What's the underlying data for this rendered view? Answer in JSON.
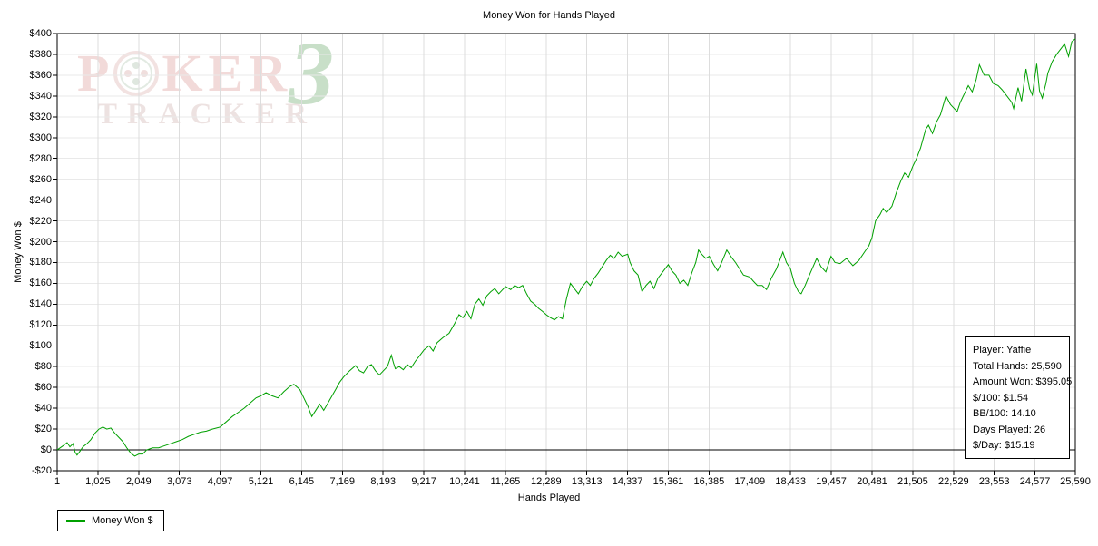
{
  "title": "Money Won for Hands Played",
  "watermark": {
    "p": "P",
    "ker": "KER",
    "three": "3",
    "tracker": "TRACKER"
  },
  "legend": {
    "label": "Money Won $"
  },
  "info_box": {
    "lines": [
      "Player: Yaffie",
      "Total Hands: 25,590",
      "Amount Won: $395.05",
      "$/100: $1.54",
      "BB/100: 14.10",
      "Days Played: 26",
      "$/Day: $15.19"
    ]
  },
  "chart_data": {
    "type": "line",
    "title": "Money Won for Hands Played",
    "xlabel": "Hands Played",
    "ylabel": "Money Won $",
    "xlim": [
      1,
      25590
    ],
    "ylim": [
      -20,
      400
    ],
    "grid": true,
    "zero_line": true,
    "legend_position": "bottom-left",
    "colors": {
      "grid_h": "#e9e9e9",
      "grid_v": "#dddddd",
      "axis": "#000000",
      "zero_line": "#000000"
    },
    "x_ticks": {
      "values": [
        1,
        1025,
        2049,
        3073,
        4097,
        5121,
        6145,
        7169,
        8193,
        9217,
        10241,
        11265,
        12289,
        13313,
        14337,
        15361,
        16385,
        17409,
        18433,
        19457,
        20481,
        21505,
        22529,
        23553,
        24577,
        25590
      ],
      "labels": [
        "1",
        "1,025",
        "2,049",
        "3,073",
        "4,097",
        "5,121",
        "6,145",
        "7,169",
        "8,193",
        "9,217",
        "10,241",
        "11,265",
        "12,289",
        "13,313",
        "14,337",
        "15,361",
        "16,385",
        "17,409",
        "18,433",
        "19,457",
        "20,481",
        "21,505",
        "22,529",
        "23,553",
        "24,577",
        "25,590"
      ]
    },
    "y_ticks": {
      "values": [
        400,
        380,
        360,
        340,
        320,
        300,
        280,
        260,
        240,
        220,
        200,
        180,
        160,
        140,
        120,
        100,
        80,
        60,
        40,
        20,
        0,
        -20
      ],
      "labels": [
        "$400",
        "$380",
        "$360",
        "$340",
        "$320",
        "$300",
        "$280",
        "$260",
        "$240",
        "$220",
        "$200",
        "$180",
        "$160",
        "$140",
        "$120",
        "$100",
        "$80",
        "$60",
        "$40",
        "$20",
        "$0",
        "-$20"
      ]
    },
    "series": [
      {
        "name": "Money Won $",
        "color": "#00a000",
        "points": [
          [
            1,
            0
          ],
          [
            150,
            4
          ],
          [
            250,
            7
          ],
          [
            320,
            3
          ],
          [
            400,
            6
          ],
          [
            450,
            -2
          ],
          [
            500,
            -5
          ],
          [
            560,
            -2
          ],
          [
            650,
            3
          ],
          [
            750,
            6
          ],
          [
            850,
            10
          ],
          [
            950,
            16
          ],
          [
            1050,
            20
          ],
          [
            1150,
            22
          ],
          [
            1250,
            20
          ],
          [
            1350,
            21
          ],
          [
            1450,
            16
          ],
          [
            1550,
            12
          ],
          [
            1650,
            8
          ],
          [
            1750,
            2
          ],
          [
            1850,
            -3
          ],
          [
            1950,
            -6
          ],
          [
            2050,
            -4
          ],
          [
            2150,
            -4
          ],
          [
            2250,
            0
          ],
          [
            2400,
            2
          ],
          [
            2550,
            2
          ],
          [
            2700,
            4
          ],
          [
            2850,
            6
          ],
          [
            3000,
            8
          ],
          [
            3150,
            10
          ],
          [
            3300,
            13
          ],
          [
            3450,
            15
          ],
          [
            3600,
            17
          ],
          [
            3750,
            18
          ],
          [
            3900,
            20
          ],
          [
            4100,
            22
          ],
          [
            4250,
            27
          ],
          [
            4400,
            32
          ],
          [
            4550,
            36
          ],
          [
            4700,
            40
          ],
          [
            4850,
            45
          ],
          [
            5000,
            50
          ],
          [
            5120,
            52
          ],
          [
            5250,
            55
          ],
          [
            5400,
            52
          ],
          [
            5550,
            50
          ],
          [
            5700,
            56
          ],
          [
            5850,
            61
          ],
          [
            5950,
            63
          ],
          [
            6100,
            58
          ],
          [
            6200,
            50
          ],
          [
            6300,
            42
          ],
          [
            6400,
            32
          ],
          [
            6500,
            38
          ],
          [
            6600,
            44
          ],
          [
            6700,
            38
          ],
          [
            6850,
            48
          ],
          [
            7000,
            58
          ],
          [
            7100,
            65
          ],
          [
            7200,
            70
          ],
          [
            7350,
            76
          ],
          [
            7500,
            81
          ],
          [
            7600,
            76
          ],
          [
            7700,
            74
          ],
          [
            7800,
            80
          ],
          [
            7900,
            82
          ],
          [
            8000,
            76
          ],
          [
            8100,
            72
          ],
          [
            8200,
            76
          ],
          [
            8300,
            80
          ],
          [
            8400,
            91
          ],
          [
            8450,
            84
          ],
          [
            8500,
            78
          ],
          [
            8600,
            80
          ],
          [
            8700,
            77
          ],
          [
            8800,
            82
          ],
          [
            8900,
            79
          ],
          [
            9000,
            85
          ],
          [
            9100,
            90
          ],
          [
            9220,
            96
          ],
          [
            9350,
            100
          ],
          [
            9450,
            95
          ],
          [
            9550,
            103
          ],
          [
            9700,
            108
          ],
          [
            9850,
            112
          ],
          [
            10000,
            122
          ],
          [
            10100,
            130
          ],
          [
            10200,
            127
          ],
          [
            10300,
            133
          ],
          [
            10400,
            126
          ],
          [
            10500,
            140
          ],
          [
            10600,
            145
          ],
          [
            10700,
            139
          ],
          [
            10800,
            148
          ],
          [
            10900,
            152
          ],
          [
            11000,
            155
          ],
          [
            11100,
            150
          ],
          [
            11270,
            157
          ],
          [
            11400,
            154
          ],
          [
            11500,
            158
          ],
          [
            11600,
            156
          ],
          [
            11700,
            158
          ],
          [
            11800,
            150
          ],
          [
            11900,
            143
          ],
          [
            12000,
            140
          ],
          [
            12100,
            136
          ],
          [
            12200,
            133
          ],
          [
            12290,
            130
          ],
          [
            12400,
            127
          ],
          [
            12500,
            125
          ],
          [
            12600,
            128
          ],
          [
            12700,
            126
          ],
          [
            12800,
            145
          ],
          [
            12900,
            160
          ],
          [
            13000,
            155
          ],
          [
            13100,
            150
          ],
          [
            13200,
            157
          ],
          [
            13310,
            162
          ],
          [
            13400,
            158
          ],
          [
            13500,
            165
          ],
          [
            13600,
            170
          ],
          [
            13700,
            176
          ],
          [
            13800,
            182
          ],
          [
            13900,
            187
          ],
          [
            14000,
            184
          ],
          [
            14100,
            190
          ],
          [
            14200,
            186
          ],
          [
            14340,
            188
          ],
          [
            14400,
            180
          ],
          [
            14500,
            172
          ],
          [
            14600,
            168
          ],
          [
            14700,
            152
          ],
          [
            14800,
            158
          ],
          [
            14900,
            162
          ],
          [
            15000,
            155
          ],
          [
            15100,
            165
          ],
          [
            15200,
            170
          ],
          [
            15360,
            178
          ],
          [
            15450,
            172
          ],
          [
            15550,
            168
          ],
          [
            15650,
            160
          ],
          [
            15750,
            163
          ],
          [
            15850,
            158
          ],
          [
            15950,
            170
          ],
          [
            16050,
            180
          ],
          [
            16120,
            192
          ],
          [
            16200,
            188
          ],
          [
            16300,
            184
          ],
          [
            16390,
            186
          ],
          [
            16500,
            178
          ],
          [
            16600,
            172
          ],
          [
            16700,
            180
          ],
          [
            16830,
            192
          ],
          [
            16950,
            185
          ],
          [
            17050,
            180
          ],
          [
            17150,
            174
          ],
          [
            17250,
            168
          ],
          [
            17410,
            166
          ],
          [
            17500,
            162
          ],
          [
            17600,
            158
          ],
          [
            17720,
            158
          ],
          [
            17830,
            154
          ],
          [
            17950,
            165
          ],
          [
            18080,
            174
          ],
          [
            18240,
            190
          ],
          [
            18330,
            180
          ],
          [
            18430,
            174
          ],
          [
            18530,
            160
          ],
          [
            18630,
            152
          ],
          [
            18700,
            150
          ],
          [
            18800,
            158
          ],
          [
            18930,
            170
          ],
          [
            19090,
            184
          ],
          [
            19200,
            176
          ],
          [
            19320,
            171
          ],
          [
            19450,
            186
          ],
          [
            19550,
            180
          ],
          [
            19680,
            179
          ],
          [
            19840,
            184
          ],
          [
            20000,
            177
          ],
          [
            20150,
            182
          ],
          [
            20290,
            190
          ],
          [
            20400,
            196
          ],
          [
            20480,
            204
          ],
          [
            20570,
            220
          ],
          [
            20680,
            226
          ],
          [
            20760,
            232
          ],
          [
            20850,
            228
          ],
          [
            20980,
            234
          ],
          [
            21100,
            248
          ],
          [
            21200,
            258
          ],
          [
            21300,
            266
          ],
          [
            21400,
            262
          ],
          [
            21500,
            272
          ],
          [
            21600,
            280
          ],
          [
            21700,
            290
          ],
          [
            21830,
            308
          ],
          [
            21900,
            312
          ],
          [
            22000,
            304
          ],
          [
            22100,
            315
          ],
          [
            22200,
            322
          ],
          [
            22340,
            340
          ],
          [
            22450,
            332
          ],
          [
            22620,
            325
          ],
          [
            22700,
            334
          ],
          [
            22800,
            342
          ],
          [
            22900,
            350
          ],
          [
            23000,
            344
          ],
          [
            23100,
            356
          ],
          [
            23180,
            370
          ],
          [
            23300,
            360
          ],
          [
            23420,
            360
          ],
          [
            23530,
            352
          ],
          [
            23650,
            350
          ],
          [
            23750,
            346
          ],
          [
            23830,
            342
          ],
          [
            23990,
            334
          ],
          [
            24040,
            328
          ],
          [
            24150,
            348
          ],
          [
            24240,
            335
          ],
          [
            24350,
            366
          ],
          [
            24440,
            347
          ],
          [
            24510,
            341
          ],
          [
            24620,
            371
          ],
          [
            24690,
            345
          ],
          [
            24760,
            338
          ],
          [
            24850,
            352
          ],
          [
            24900,
            362
          ],
          [
            25010,
            373
          ],
          [
            25120,
            380
          ],
          [
            25240,
            386
          ],
          [
            25320,
            390
          ],
          [
            25420,
            378
          ],
          [
            25500,
            392
          ],
          [
            25590,
            395
          ]
        ]
      }
    ]
  }
}
